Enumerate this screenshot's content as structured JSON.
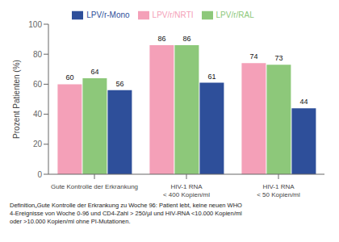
{
  "chart_data": {
    "type": "bar",
    "categories": [
      "Gute Kontrolle der Erkrankung",
      "HIV-1 RNA\n< 400 Kopien/ml",
      "HIV-1 RNA\n< 50 Kopien/ml"
    ],
    "series": [
      {
        "name": "LPV/r/NRTI",
        "color": "#f4a0b8",
        "values": [
          60,
          86,
          74
        ]
      },
      {
        "name": "LPV/r/RAL",
        "color": "#8dc87a",
        "values": [
          64,
          86,
          73
        ]
      },
      {
        "name": "LPV/r-Mono",
        "color": "#2e4f9a",
        "values": [
          56,
          61,
          44
        ]
      }
    ],
    "y_label": "Prozent Patienten (%)",
    "ylim": [
      0,
      100
    ],
    "yticks": [
      0,
      20,
      40,
      60,
      80,
      100
    ],
    "grid": false,
    "legend": "top",
    "data_labels": true,
    "annotation": "Definition„Gute Kontrolle der Erkrankung zu Woche 96: Patient lebt, keine neuen WHO\n4-Ereignisse von Woche 0-96 und CD4-Zahl > 250/µl und HIV-RNA <10.000 Kopien/ml\noder >10.000 Kopien/ml ohne PI-Mutationen."
  }
}
